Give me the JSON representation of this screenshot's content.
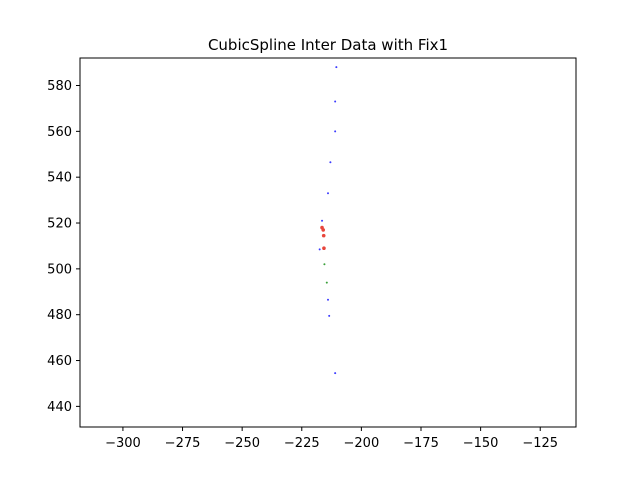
{
  "chart_data": {
    "type": "scatter",
    "title": "CubicSpline Inter Data with Fix1",
    "xlabel": "",
    "ylabel": "",
    "xlim": [
      -318,
      -110
    ],
    "ylim": [
      431,
      592
    ],
    "xticks": [
      -300,
      -275,
      -250,
      -225,
      -200,
      -175,
      -150,
      -125
    ],
    "yticks": [
      440,
      460,
      480,
      500,
      520,
      540,
      560,
      580
    ],
    "xtick_labels": [
      "−300",
      "−275",
      "−250",
      "−225",
      "−200",
      "−175",
      "−150",
      "−125"
    ],
    "ytick_labels": [
      "440",
      "460",
      "480",
      "500",
      "520",
      "540",
      "560",
      "580"
    ],
    "grid": false,
    "series": [
      {
        "color": "#3a3aff",
        "points": [
          {
            "x": -210.5,
            "y": 588.0
          },
          {
            "x": -211.0,
            "y": 573.0
          },
          {
            "x": -211.0,
            "y": 560.0
          },
          {
            "x": -213.0,
            "y": 546.5
          },
          {
            "x": -214.0,
            "y": 533.0
          },
          {
            "x": -216.5,
            "y": 521.0
          },
          {
            "x": -217.5,
            "y": 508.5
          },
          {
            "x": -214.0,
            "y": 486.5
          },
          {
            "x": -213.5,
            "y": 479.5
          },
          {
            "x": -211.0,
            "y": 454.5
          }
        ]
      },
      {
        "color": "#3aa03a",
        "points": [
          {
            "x": -215.5,
            "y": 502.0
          },
          {
            "x": -214.5,
            "y": 494.0
          }
        ]
      },
      {
        "color": "#e8463c",
        "points": [
          {
            "x": -216.5,
            "y": 518.0
          },
          {
            "x": -216.0,
            "y": 517.0
          },
          {
            "x": -215.8,
            "y": 514.5
          },
          {
            "x": -215.7,
            "y": 509.0
          }
        ]
      }
    ]
  }
}
